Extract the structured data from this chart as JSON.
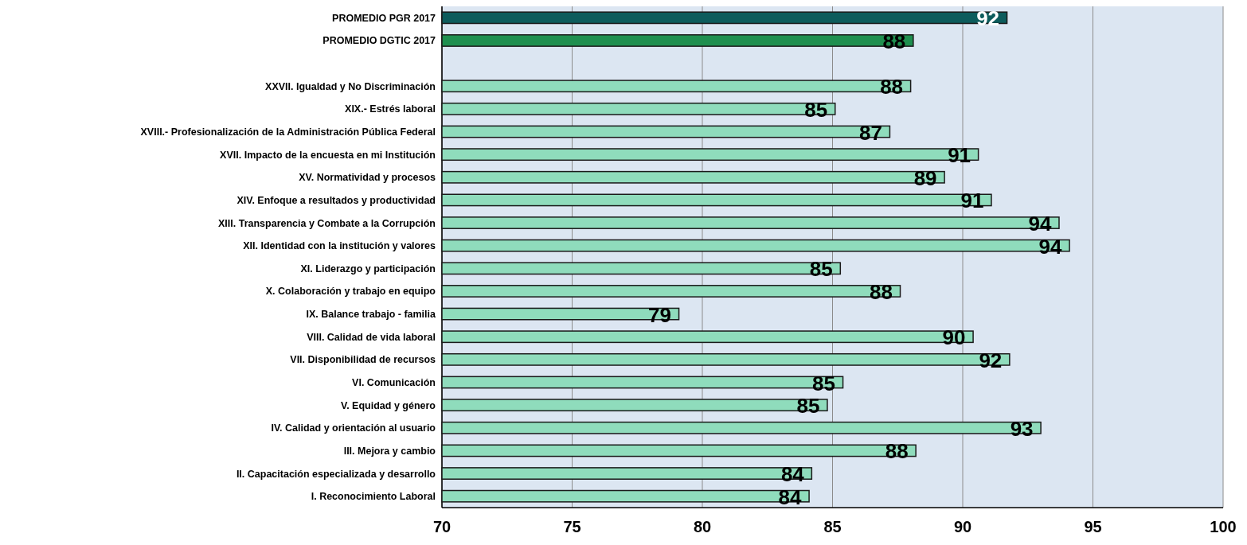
{
  "chart_data": {
    "type": "bar",
    "orientation": "horizontal",
    "categories": [
      "PROMEDIO PGR 2017",
      "PROMEDIO DGTIC 2017",
      null,
      "XXVII. Igualdad y No Discriminación",
      "XIX.- Estrés laboral",
      "XVIII.- Profesionalización de la Administración Pública Federal",
      "XVII. Impacto de la encuesta en mi Institución",
      "XV. Normatividad y procesos",
      "XIV. Enfoque a resultados y productividad",
      "XIII. Transparencia y Combate a la Corrupción",
      "XII. Identidad con la institución y valores",
      "XI. Liderazgo y participación",
      "X. Colaboración y trabajo en equipo",
      "IX. Balance trabajo - familia ",
      "VIII. Calidad de vida laboral",
      "VII. Disponibilidad de recursos",
      "VI. Comunicación",
      "V. Equidad y género",
      "IV. Calidad y orientación al usuario",
      "III. Mejora y cambio",
      "II. Capacitación especializada y desarrollo",
      "I. Reconocimiento Laboral"
    ],
    "values": [
      91.7,
      88.1,
      null,
      88.0,
      85.1,
      87.2,
      90.6,
      89.3,
      91.1,
      93.7,
      94.1,
      85.3,
      87.6,
      79.1,
      90.4,
      91.8,
      85.4,
      84.8,
      93.0,
      88.2,
      84.2,
      84.1
    ],
    "value_labels": [
      "92",
      "88",
      null,
      "88",
      "85",
      "87",
      "91",
      "89",
      "91",
      "94",
      "94",
      "85",
      "88",
      "79",
      "90",
      "92",
      "85",
      "85",
      "93",
      "88",
      "84",
      "84"
    ],
    "colors": [
      "#0d5c5c",
      "#1f8f4f",
      null,
      "#8fdcbc",
      "#8fdcbc",
      "#8fdcbc",
      "#8fdcbc",
      "#8fdcbc",
      "#8fdcbc",
      "#8fdcbc",
      "#8fdcbc",
      "#8fdcbc",
      "#8fdcbc",
      "#8fdcbc",
      "#8fdcbc",
      "#8fdcbc",
      "#8fdcbc",
      "#8fdcbc",
      "#8fdcbc",
      "#8fdcbc",
      "#8fdcbc",
      "#8fdcbc"
    ],
    "xlim": [
      70,
      100
    ],
    "xticks": [
      70,
      75,
      80,
      85,
      90,
      95,
      100
    ],
    "grid": "x"
  }
}
